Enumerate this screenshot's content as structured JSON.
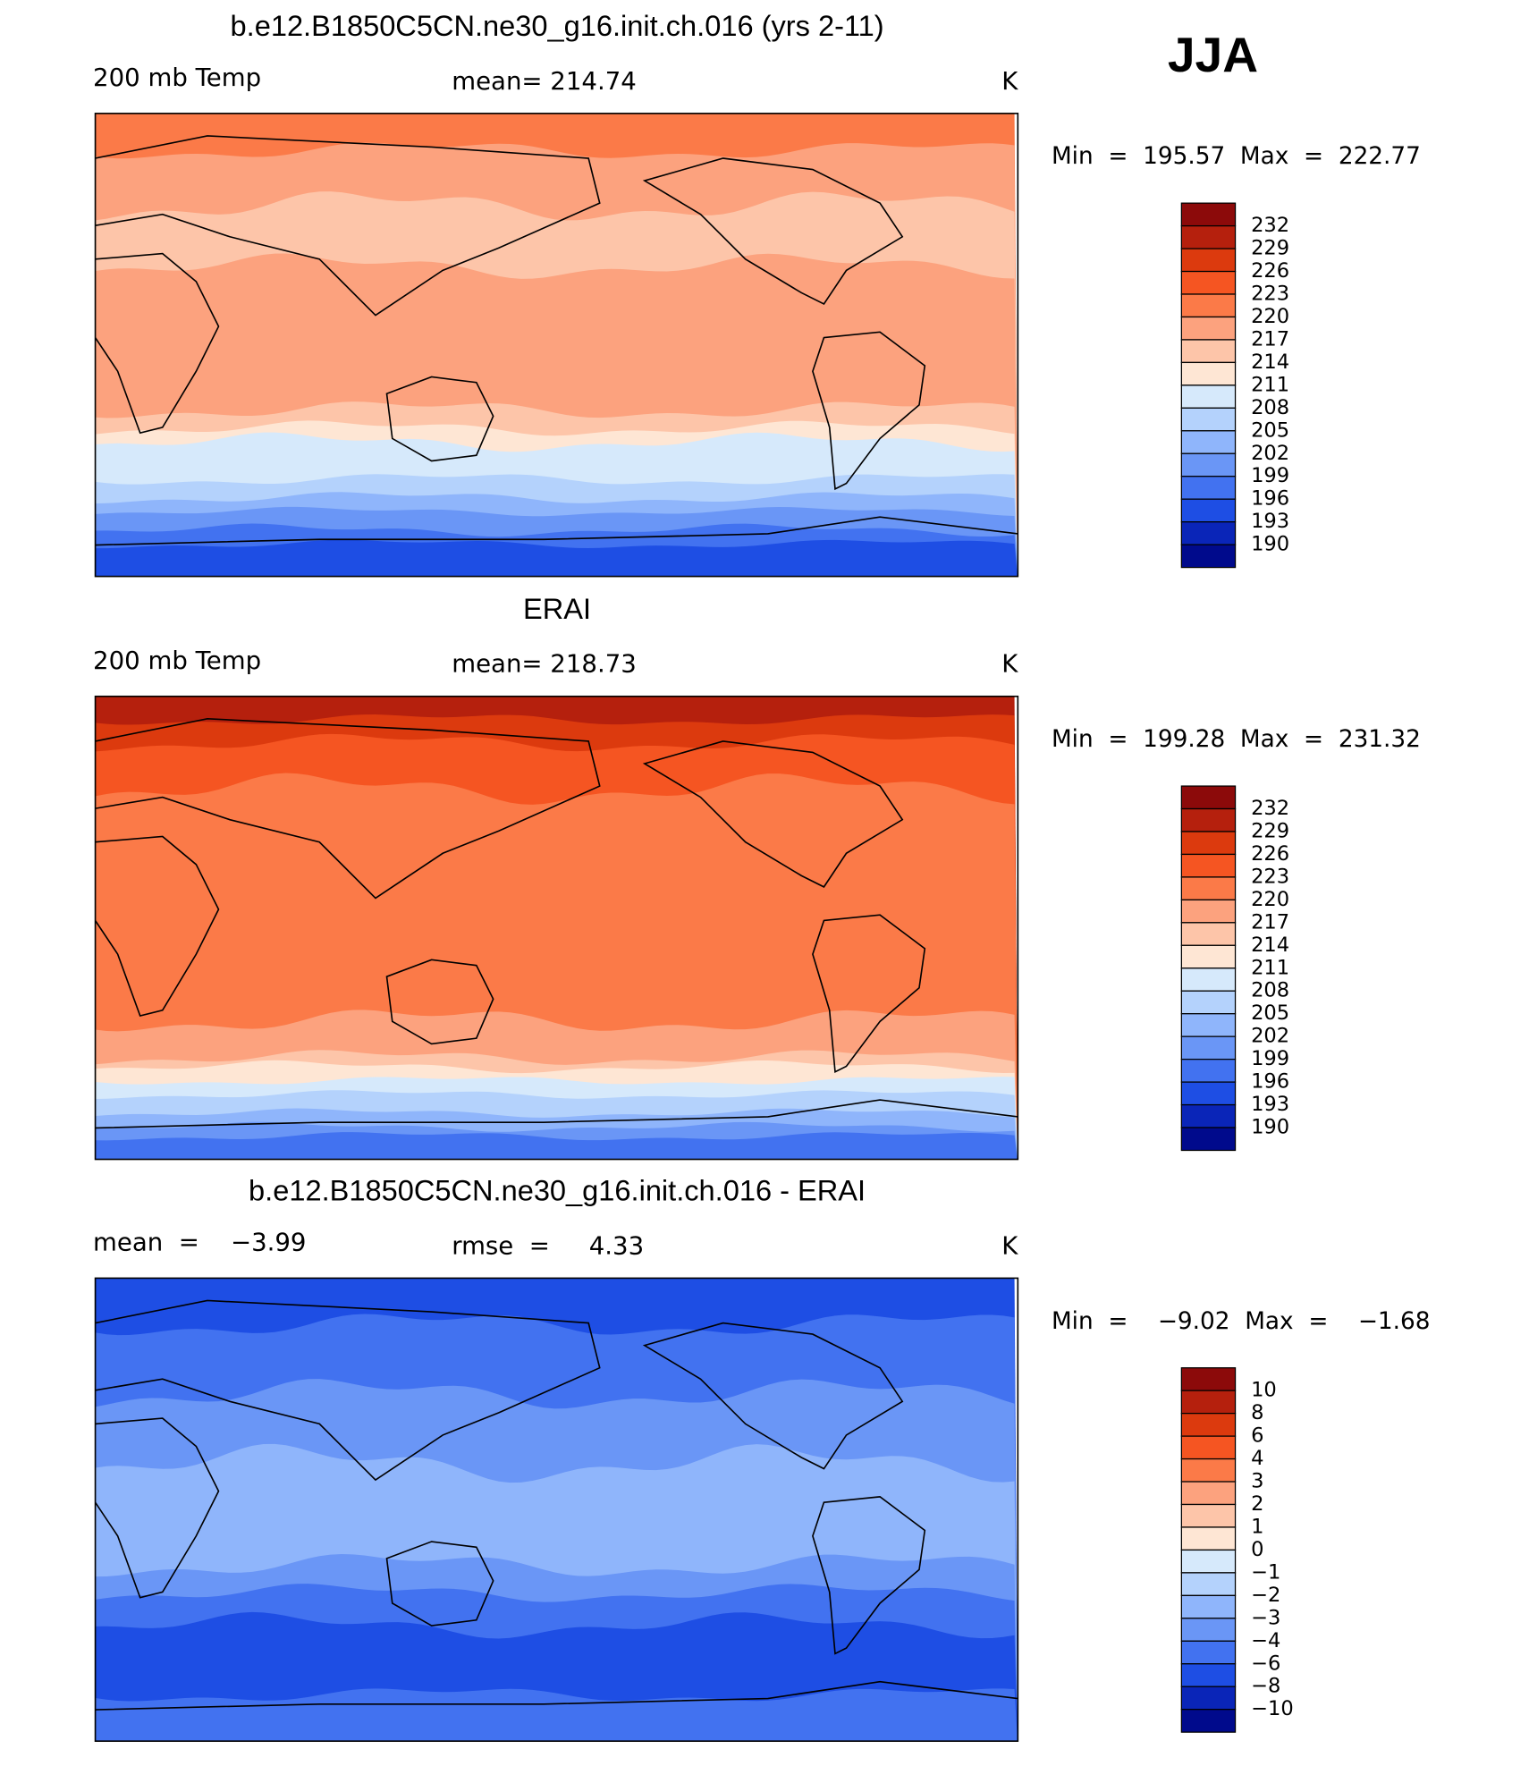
{
  "header": {
    "season": "JJA"
  },
  "palette": [
    "#8c0a0a",
    "#b5200d",
    "#dc3a0e",
    "#f55522",
    "#fb7a48",
    "#fca27e",
    "#fdc5a9",
    "#fee6d4",
    "#d6e9fb",
    "#b4d2fc",
    "#8fb5fb",
    "#6a96f6",
    "#4272f0",
    "#1e4ee4",
    "#0a25b8",
    "#000a8c"
  ],
  "panels": [
    {
      "title": "b.e12.B1850C5CN.ne30_g16.init.ch.016 (yrs 2-11)",
      "left": "200 mb Temp",
      "center": "mean= 214.74",
      "right": "K",
      "range": "Min  =  195.57  Max  =  222.77",
      "colorbar": [
        "232",
        "229",
        "226",
        "223",
        "220",
        "217",
        "214",
        "211",
        "208",
        "205",
        "202",
        "199",
        "196",
        "193",
        "190"
      ]
    },
    {
      "title": "ERAI",
      "left": "200 mb Temp",
      "center": "mean= 218.73",
      "right": "K",
      "range": "Min  =  199.28  Max  =  231.32",
      "colorbar": [
        "232",
        "229",
        "226",
        "223",
        "220",
        "217",
        "214",
        "211",
        "208",
        "205",
        "202",
        "199",
        "196",
        "193",
        "190"
      ]
    },
    {
      "title": "b.e12.B1850C5CN.ne30_g16.init.ch.016 - ERAI",
      "left": "mean  =    −3.99",
      "center": "rmse  =     4.33",
      "right": "K",
      "range": "Min  =    −9.02  Max  =    −1.68",
      "colorbar": [
        "10",
        "8",
        "6",
        "4",
        "3",
        "2",
        "1",
        "0",
        "−1",
        "−2",
        "−3",
        "−4",
        "−6",
        "−8",
        "−10"
      ]
    }
  ]
}
